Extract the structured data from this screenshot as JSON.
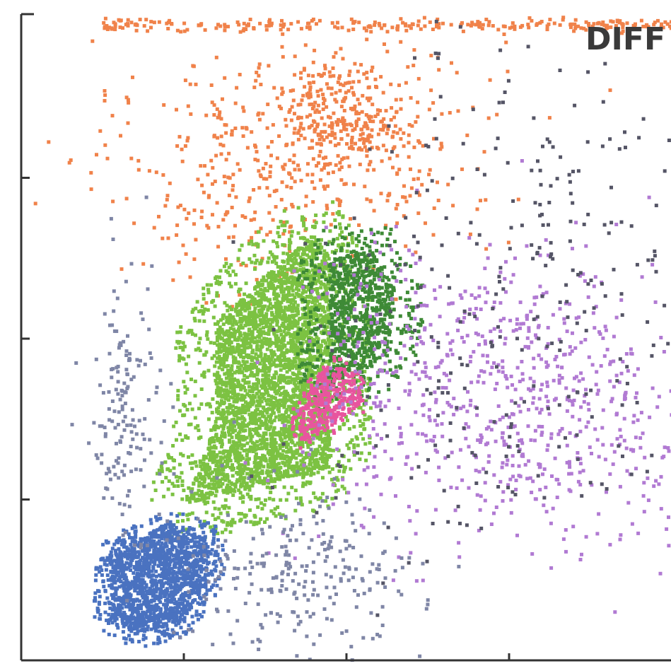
{
  "chart_data": {
    "type": "scatter",
    "title": "DIFF",
    "xlabel": "",
    "ylabel": "",
    "xlim": [
      0,
      4
    ],
    "ylim": [
      0,
      4
    ],
    "x_ticks": [
      1,
      2,
      3
    ],
    "y_ticks": [
      1,
      2,
      3
    ],
    "grid": false,
    "legend": "none",
    "clusters": [
      {
        "color": "#f0824a",
        "regions": [
          {
            "cx": 1.85,
            "cy": 3.25,
            "sx": 0.55,
            "sy": 0.38,
            "n": 420
          },
          {
            "cx": 1.25,
            "cy": 2.85,
            "sx": 0.4,
            "sy": 0.35,
            "n": 120
          },
          {
            "cx": 2.0,
            "cy": 3.38,
            "sx": 0.18,
            "sy": 0.16,
            "n": 220
          }
        ],
        "band": {
          "x0": 0.5,
          "x1": 4.0,
          "y": 3.95,
          "n": 260
        }
      },
      {
        "color": "#7cc242",
        "polygon": [
          [
            1.0,
            0.97
          ],
          [
            1.9,
            1.2
          ],
          [
            1.9,
            2.5
          ],
          [
            1.8,
            2.65
          ],
          [
            1.4,
            2.3
          ],
          [
            1.2,
            2.05
          ],
          [
            1.2,
            1.5
          ],
          [
            1.1,
            1.2
          ]
        ],
        "halo": 0.25,
        "n_fill": 3200,
        "n_halo": 700
      },
      {
        "color": "#3e8a36",
        "polygon": [
          [
            1.9,
            1.7
          ],
          [
            2.25,
            1.9
          ],
          [
            2.3,
            2.3
          ],
          [
            2.15,
            2.55
          ],
          [
            1.9,
            2.5
          ]
        ],
        "halo": 0.2,
        "n_fill": 700,
        "n_halo": 260
      },
      {
        "color": "#e8559e",
        "polygon": [
          [
            1.72,
            1.35
          ],
          [
            1.9,
            1.45
          ],
          [
            2.1,
            1.6
          ],
          [
            2.05,
            1.78
          ],
          [
            1.9,
            1.85
          ],
          [
            1.8,
            1.72
          ],
          [
            1.7,
            1.55
          ]
        ],
        "halo": 0.05,
        "n_fill": 320,
        "n_halo": 40
      },
      {
        "color": "#b17ad3",
        "regions": [
          {
            "cx": 2.9,
            "cy": 1.7,
            "sx": 0.55,
            "sy": 0.45,
            "n": 650
          },
          {
            "cx": 3.4,
            "cy": 1.3,
            "sx": 0.5,
            "sy": 0.4,
            "n": 150
          }
        ]
      },
      {
        "color": "#4a72c0",
        "polygon": [
          [
            0.55,
            0.65
          ],
          [
            0.55,
            0.27
          ],
          [
            0.72,
            0.17
          ],
          [
            1.0,
            0.25
          ],
          [
            1.15,
            0.5
          ],
          [
            1.15,
            0.75
          ],
          [
            0.9,
            0.85
          ]
        ],
        "halo": 0.1,
        "n_fill": 1400,
        "n_halo": 260
      },
      {
        "color": "#7f86a6",
        "regions": [
          {
            "cx": 1.7,
            "cy": 0.55,
            "sx": 0.35,
            "sy": 0.28,
            "n": 260
          },
          {
            "cx": 0.65,
            "cy": 1.55,
            "sx": 0.12,
            "sy": 0.38,
            "n": 160
          }
        ]
      },
      {
        "color": "#555566",
        "regions": [
          {
            "cx": 3.3,
            "cy": 2.7,
            "sx": 0.7,
            "sy": 0.7,
            "n": 200
          },
          {
            "cx": 2.8,
            "cy": 1.6,
            "sx": 0.6,
            "sy": 0.45,
            "n": 120
          }
        ]
      }
    ]
  }
}
